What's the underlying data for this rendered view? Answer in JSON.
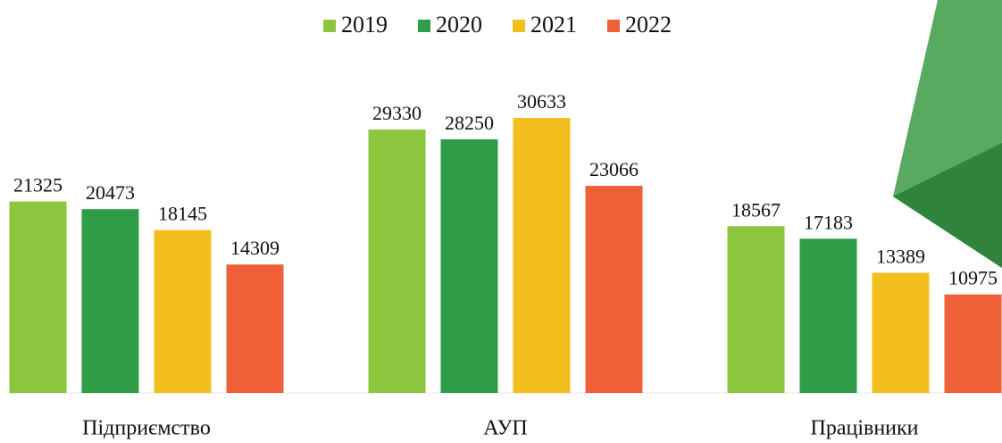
{
  "chart_data": {
    "type": "bar",
    "categories": [
      "Підприємство",
      "АУП",
      "Працівники"
    ],
    "series": [
      {
        "name": "2019",
        "color": "#8cc63f",
        "values": [
          21325,
          29330,
          18567
        ]
      },
      {
        "name": "2020",
        "color": "#2f9d48",
        "values": [
          20473,
          28250,
          17183
        ]
      },
      {
        "name": "2021",
        "color": "#f3bf1f",
        "values": [
          18145,
          30633,
          13389
        ]
      },
      {
        "name": "2022",
        "color": "#ef5f38",
        "values": [
          14309,
          23066,
          10975
        ]
      }
    ]
  }
}
